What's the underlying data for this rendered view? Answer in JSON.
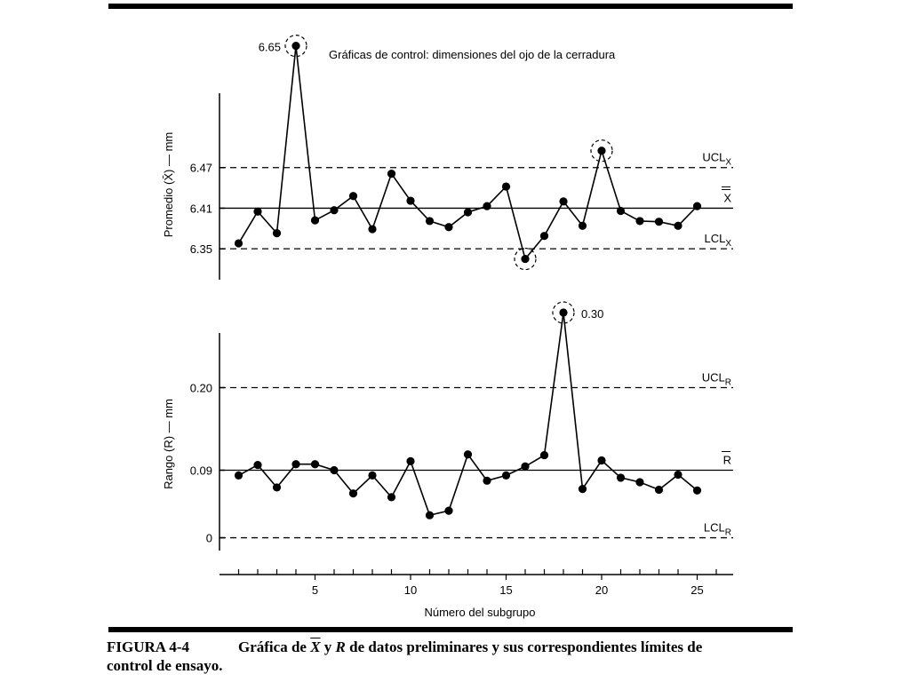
{
  "figure": {
    "label": "FIGURA 4-4",
    "caption_part1": "Gráfica de",
    "caption_xbar": "X",
    "caption_part2": "y",
    "caption_r": "R",
    "caption_part3": "de datos preliminares y sus correspondientes límites de",
    "caption_line2": "control de ensayo."
  },
  "chart_data": [
    {
      "type": "line",
      "title": "Gráficas de control: dimensiones del ojo de la cerradura",
      "ylabel": "Promedio (X̄) — mm",
      "xlabel": "",
      "x": [
        1,
        2,
        3,
        4,
        5,
        6,
        7,
        8,
        9,
        10,
        11,
        12,
        13,
        14,
        15,
        16,
        17,
        18,
        19,
        20,
        21,
        22,
        23,
        24,
        25
      ],
      "series": [
        {
          "name": "",
          "values": [
            6.358,
            6.405,
            6.373,
            6.65,
            6.392,
            6.407,
            6.428,
            6.379,
            6.461,
            6.421,
            6.391,
            6.382,
            6.404,
            6.413,
            6.442,
            6.335,
            6.369,
            6.42,
            6.384,
            6.495,
            6.406,
            6.391,
            6.39,
            6.384,
            6.413
          ]
        }
      ],
      "yticks": [
        "6.35",
        "6.41",
        "6.47"
      ],
      "ylim": [
        6.32,
        6.66
      ],
      "xlim": [
        0,
        27
      ],
      "reference_lines": [
        {
          "name": "UCL_X",
          "label": "UCL",
          "sub": "X",
          "value": 6.47,
          "style": "dashed"
        },
        {
          "name": "X_double_bar",
          "label": "X",
          "sub": "",
          "value": 6.41,
          "style": "solid"
        },
        {
          "name": "LCL_X",
          "label": "LCL",
          "sub": "X",
          "value": 6.35,
          "style": "dashed"
        }
      ],
      "annotations": [
        {
          "text": "6.65",
          "x": 4,
          "y": 6.65
        }
      ],
      "circled_points": [
        4,
        16,
        20
      ],
      "grid": false
    },
    {
      "type": "line",
      "title": "",
      "ylabel": "Rango (R) — mm",
      "xlabel": "Número del subgrupo",
      "x": [
        1,
        2,
        3,
        4,
        5,
        6,
        7,
        8,
        9,
        10,
        11,
        12,
        13,
        14,
        15,
        16,
        17,
        18,
        19,
        20,
        21,
        22,
        23,
        24,
        25
      ],
      "series": [
        {
          "name": "",
          "values": [
            0.083,
            0.097,
            0.067,
            0.098,
            0.098,
            0.09,
            0.059,
            0.083,
            0.054,
            0.102,
            0.03,
            0.036,
            0.111,
            0.076,
            0.083,
            0.095,
            0.11,
            0.3,
            0.065,
            0.103,
            0.08,
            0.074,
            0.064,
            0.084,
            0.063
          ]
        }
      ],
      "yticks": [
        "0",
        "0.09",
        "0.20"
      ],
      "ylim": [
        -0.01,
        0.3
      ],
      "xticks": [
        "5",
        "10",
        "15",
        "20",
        "25"
      ],
      "xlim": [
        0,
        27
      ],
      "reference_lines": [
        {
          "name": "UCL_R",
          "label": "UCL",
          "sub": "R",
          "value": 0.2,
          "style": "dashed"
        },
        {
          "name": "R_bar",
          "label": "R",
          "sub": "",
          "value": 0.09,
          "style": "solid"
        },
        {
          "name": "LCL_R",
          "label": "LCL",
          "sub": "R",
          "value": 0,
          "style": "dashed"
        }
      ],
      "annotations": [
        {
          "text": "0.30",
          "x": 18,
          "y": 0.3
        }
      ],
      "circled_points": [
        18
      ],
      "grid": false
    }
  ]
}
